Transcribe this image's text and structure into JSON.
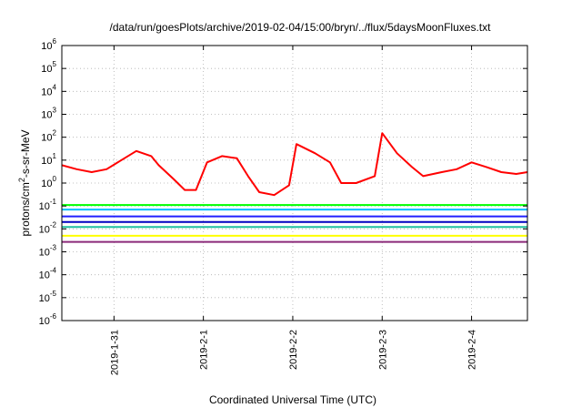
{
  "chart_data": {
    "type": "line",
    "title": "/data/run/goesPlots/archive/2019-02-04/15:00/bryn/../flux/5daysMoonFluxes.txt",
    "xlabel": "Coordinated Universal Time (UTC)",
    "ylabel": {
      "prefix": "protons/cm",
      "sup": "2",
      "suffix": "-s-sr-MeV"
    },
    "yscale": "log",
    "ylim": [
      1e-06,
      1000000.0
    ],
    "y_ticks": [
      {
        "exp": "-6",
        "value": 1e-06
      },
      {
        "exp": "-5",
        "value": 1e-05
      },
      {
        "exp": "-4",
        "value": 0.0001
      },
      {
        "exp": "-3",
        "value": 0.001
      },
      {
        "exp": "-2",
        "value": 0.01
      },
      {
        "exp": "-1",
        "value": 0.1
      },
      {
        "exp": "0",
        "value": 1
      },
      {
        "exp": "1",
        "value": 10
      },
      {
        "exp": "2",
        "value": 100
      },
      {
        "exp": "3",
        "value": 1000
      },
      {
        "exp": "4",
        "value": 10000
      },
      {
        "exp": "5",
        "value": 100000
      },
      {
        "exp": "6",
        "value": 1000000
      }
    ],
    "xlim": [
      "2019-01-30T10:00",
      "2019-02-04T15:00"
    ],
    "x_ticks": [
      {
        "label": "2019-1-31",
        "x": "2019-01-31T00:00"
      },
      {
        "label": "2019-2-1",
        "x": "2019-02-01T00:00"
      },
      {
        "label": "2019-2-2",
        "x": "2019-02-02T00:00"
      },
      {
        "label": "2019-2-3",
        "x": "2019-02-03T00:00"
      },
      {
        "label": "2019-2-4",
        "x": "2019-02-04T00:00"
      }
    ],
    "grid": true,
    "series": [
      {
        "color": "#ff0000",
        "points": [
          [
            "2019-01-30T10:00",
            6
          ],
          [
            "2019-01-30T14:00",
            4
          ],
          [
            "2019-01-30T18:00",
            3
          ],
          [
            "2019-01-30T22:00",
            4
          ],
          [
            "2019-01-31T02:00",
            10
          ],
          [
            "2019-01-31T06:00",
            25
          ],
          [
            "2019-01-31T10:00",
            15
          ],
          [
            "2019-01-31T12:00",
            6
          ],
          [
            "2019-01-31T16:00",
            1.5
          ],
          [
            "2019-01-31T19:00",
            0.5
          ],
          [
            "2019-01-31T22:00",
            0.5
          ],
          [
            "2019-02-01T01:00",
            8
          ],
          [
            "2019-02-01T05:00",
            15
          ],
          [
            "2019-02-01T09:00",
            12
          ],
          [
            "2019-02-01T12:00",
            2
          ],
          [
            "2019-02-01T15:00",
            0.4
          ],
          [
            "2019-02-01T19:00",
            0.3
          ],
          [
            "2019-02-01T23:00",
            0.8
          ],
          [
            "2019-02-02T01:00",
            50
          ],
          [
            "2019-02-02T06:00",
            20
          ],
          [
            "2019-02-02T10:00",
            8
          ],
          [
            "2019-02-02T13:00",
            1
          ],
          [
            "2019-02-02T17:00",
            1
          ],
          [
            "2019-02-02T22:00",
            2
          ],
          [
            "2019-02-03T00:00",
            150
          ],
          [
            "2019-02-03T04:00",
            20
          ],
          [
            "2019-02-03T08:00",
            5
          ],
          [
            "2019-02-03T11:00",
            2
          ],
          [
            "2019-02-03T16:00",
            3
          ],
          [
            "2019-02-03T20:00",
            4
          ],
          [
            "2019-02-04T00:00",
            8
          ],
          [
            "2019-02-04T04:00",
            5
          ],
          [
            "2019-02-04T08:00",
            3
          ],
          [
            "2019-02-04T12:00",
            2.5
          ],
          [
            "2019-02-04T15:00",
            3
          ]
        ]
      },
      {
        "color": "#00ff00",
        "points": [
          [
            "2019-01-30T10:00",
            0.11
          ],
          [
            "2019-02-04T15:00",
            0.11
          ]
        ]
      },
      {
        "color": "#00bfff",
        "points": [
          [
            "2019-01-30T10:00",
            0.07
          ],
          [
            "2019-02-04T15:00",
            0.07
          ]
        ]
      },
      {
        "color": "#2020ff",
        "points": [
          [
            "2019-01-30T10:00",
            0.035
          ],
          [
            "2019-02-04T15:00",
            0.035
          ]
        ]
      },
      {
        "color": "#0000c0",
        "points": [
          [
            "2019-01-30T10:00",
            0.02
          ],
          [
            "2019-02-04T15:00",
            0.02
          ]
        ]
      },
      {
        "color": "#20c0a0",
        "points": [
          [
            "2019-01-30T10:00",
            0.012
          ],
          [
            "2019-02-04T15:00",
            0.012
          ]
        ]
      },
      {
        "color": "#ffff00",
        "points": [
          [
            "2019-01-30T10:00",
            0.005
          ],
          [
            "2019-02-04T15:00",
            0.005
          ]
        ]
      },
      {
        "color": "#8b2a7a",
        "points": [
          [
            "2019-01-30T10:00",
            0.0027
          ],
          [
            "2019-02-04T15:00",
            0.0027
          ]
        ]
      }
    ]
  }
}
